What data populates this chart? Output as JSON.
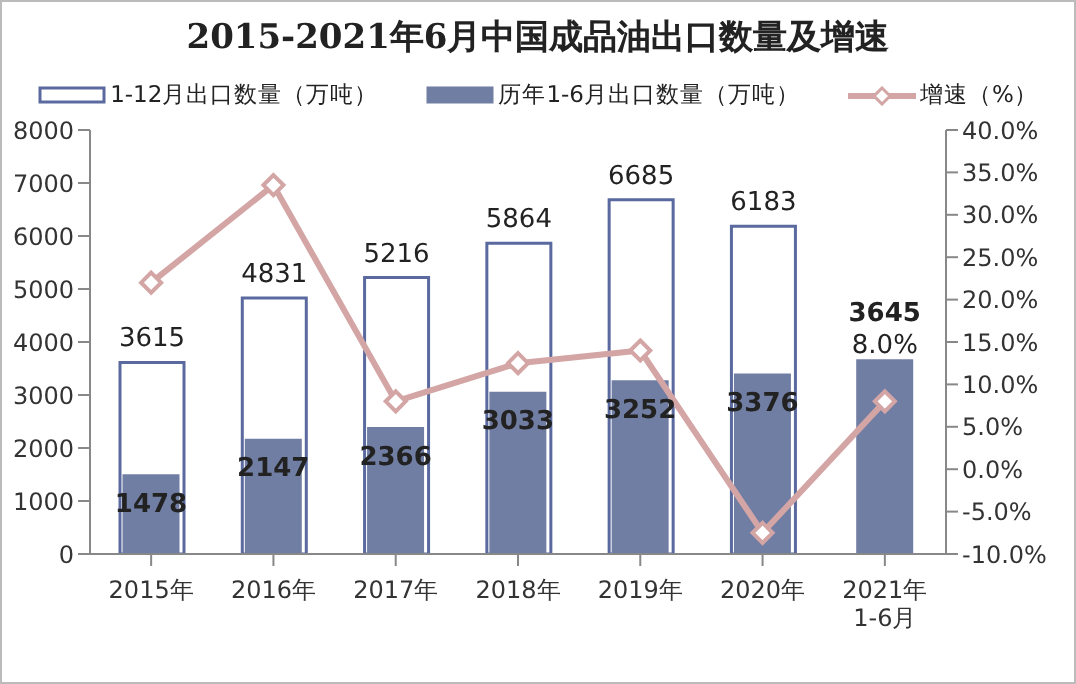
{
  "chart_data": {
    "type": "bar",
    "title": "2015-2021年6月中国成品油出口数量及增速",
    "categories": [
      "2015年",
      "2016年",
      "2017年",
      "2018年",
      "2019年",
      "2020年",
      "2021年\n1-6月"
    ],
    "series": [
      {
        "name": "1-12月出口数量（万吨）",
        "color": "#ffffff",
        "values": [
          3615,
          4831,
          5216,
          5864,
          6685,
          6183,
          null
        ],
        "value_labels": [
          "3615",
          "4831",
          "5216",
          "5864",
          "6685",
          "6183",
          null
        ]
      },
      {
        "name": "历年1-6月出口数量（万吨）",
        "color": "#717ea3",
        "values": [
          1478,
          2147,
          2366,
          3033,
          3252,
          3376,
          3645
        ],
        "value_labels": [
          "1478",
          "2147",
          "2366",
          "3033",
          "3252",
          "3376",
          "3645"
        ]
      },
      {
        "name": "增速（%）",
        "type": "line",
        "axis": "y2",
        "color": "#d4a5a5",
        "marker": "diamond",
        "values": [
          22,
          33.5,
          8,
          12.5,
          14,
          -7.5,
          8
        ],
        "value_labels": [
          null,
          null,
          null,
          null,
          null,
          null,
          "8.0%"
        ]
      }
    ],
    "ylim": [
      0,
      8000
    ],
    "yticks": [
      0,
      1000,
      2000,
      3000,
      4000,
      5000,
      6000,
      7000,
      8000
    ],
    "y2lim": [
      -10,
      40
    ],
    "y2ticks": [
      {
        "value": -10,
        "label": "-10.0%"
      },
      {
        "value": -5,
        "label": "-5.0%"
      },
      {
        "value": 0,
        "label": "0.0%"
      },
      {
        "value": 5,
        "label": "5.0%"
      },
      {
        "value": 10,
        "label": "10.0%"
      },
      {
        "value": 15,
        "label": "15.0%"
      },
      {
        "value": 20,
        "label": "20.0%"
      },
      {
        "value": 25,
        "label": "25.0%"
      },
      {
        "value": 30,
        "label": "30.0%"
      },
      {
        "value": 35,
        "label": "35.0%"
      },
      {
        "value": 40,
        "label": "40.0%"
      }
    ],
    "grid": false,
    "legend": "top"
  }
}
